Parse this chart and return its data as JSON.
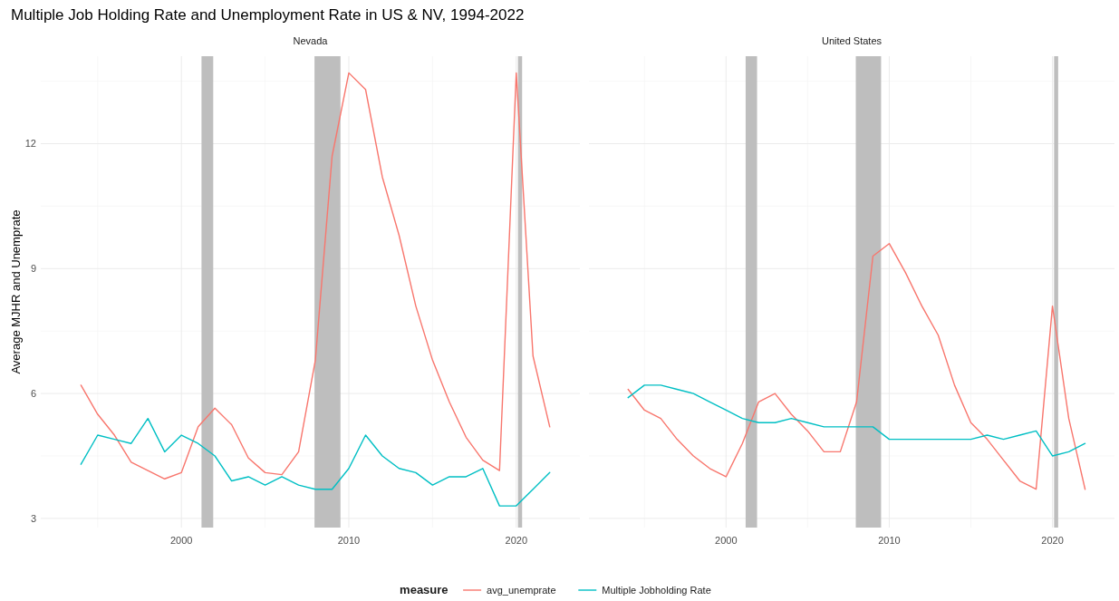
{
  "chart_data": [
    {
      "type": "line",
      "title": "Multiple Job Holding Rate and Unemployment Rate in US & NV, 1994-2022",
      "subtitle": "Nevada",
      "ylabel": "Average MJHR and Unemprate",
      "legend_title": "measure",
      "legend": "bottom",
      "grid": true,
      "x": [
        1994,
        1995,
        1996,
        1997,
        1998,
        1999,
        2000,
        2001,
        2002,
        2003,
        2004,
        2005,
        2006,
        2007,
        2008,
        2009,
        2010,
        2011,
        2012,
        2013,
        2014,
        2015,
        2016,
        2017,
        2018,
        2019,
        2020,
        2021,
        2022
      ],
      "xlim": [
        1991.6,
        2023.8
      ],
      "xticks": [
        2000,
        2010,
        2020
      ],
      "ylim": [
        2.78,
        14.1
      ],
      "yticks": [
        3,
        6,
        9,
        12
      ],
      "bands": [
        {
          "axis": "x",
          "from": 2001.2,
          "to": 2001.9,
          "color": "#bebebe"
        },
        {
          "axis": "x",
          "from": 2007.95,
          "to": 2009.5,
          "color": "#bebebe"
        },
        {
          "axis": "x",
          "from": 2020.1,
          "to": 2020.35,
          "color": "#bebebe"
        }
      ],
      "series": [
        {
          "name": "avg_unemprate",
          "color": "#f8766d",
          "values": [
            6.2,
            5.5,
            5.0,
            4.35,
            4.15,
            3.95,
            4.1,
            5.2,
            5.65,
            5.25,
            4.45,
            4.1,
            4.05,
            4.6,
            6.8,
            11.7,
            13.7,
            13.3,
            11.2,
            9.8,
            8.1,
            6.8,
            5.8,
            4.95,
            4.4,
            4.15,
            13.7,
            6.9,
            5.2
          ]
        },
        {
          "name": "Multiple Jobholding Rate",
          "color": "#00bfc4",
          "values": [
            4.3,
            5.0,
            4.9,
            4.8,
            5.4,
            4.6,
            5.0,
            4.8,
            4.5,
            3.9,
            4.0,
            3.8,
            4.0,
            3.8,
            3.7,
            3.7,
            4.2,
            5.0,
            4.5,
            4.2,
            4.1,
            3.8,
            4.0,
            4.0,
            4.2,
            3.3,
            3.3,
            3.7,
            4.1
          ]
        }
      ]
    },
    {
      "type": "line",
      "subtitle": "United States",
      "grid": true,
      "tick_labels": "x",
      "x": [
        1994,
        1995,
        1996,
        1997,
        1998,
        1999,
        2000,
        2001,
        2002,
        2003,
        2004,
        2005,
        2006,
        2007,
        2008,
        2009,
        2010,
        2011,
        2012,
        2013,
        2014,
        2015,
        2016,
        2017,
        2018,
        2019,
        2020,
        2021,
        2022
      ],
      "xlim": [
        1991.6,
        2023.8
      ],
      "xticks": [
        2000,
        2010,
        2020
      ],
      "ylim": [
        2.78,
        14.1
      ],
      "yticks": [
        3,
        6,
        9,
        12
      ],
      "bands": [
        {
          "axis": "x",
          "from": 2001.2,
          "to": 2001.9,
          "color": "#bebebe"
        },
        {
          "axis": "x",
          "from": 2007.95,
          "to": 2009.5,
          "color": "#bebebe"
        },
        {
          "axis": "x",
          "from": 2020.1,
          "to": 2020.35,
          "color": "#bebebe"
        }
      ],
      "series": [
        {
          "color": "#f8766d",
          "values": [
            6.1,
            5.6,
            5.4,
            4.9,
            4.5,
            4.2,
            4.0,
            4.8,
            5.8,
            6.0,
            5.5,
            5.1,
            4.6,
            4.6,
            5.8,
            9.3,
            9.6,
            8.9,
            8.1,
            7.4,
            6.2,
            5.3,
            4.9,
            4.4,
            3.9,
            3.7,
            8.1,
            5.4,
            3.7
          ]
        },
        {
          "color": "#00bfc4",
          "values": [
            5.9,
            6.2,
            6.2,
            6.1,
            6.0,
            5.8,
            5.6,
            5.4,
            5.3,
            5.3,
            5.4,
            5.3,
            5.2,
            5.2,
            5.2,
            5.2,
            4.9,
            4.9,
            4.9,
            4.9,
            4.9,
            4.9,
            5.0,
            4.9,
            5.0,
            5.1,
            4.5,
            4.6,
            4.8
          ]
        }
      ]
    }
  ]
}
